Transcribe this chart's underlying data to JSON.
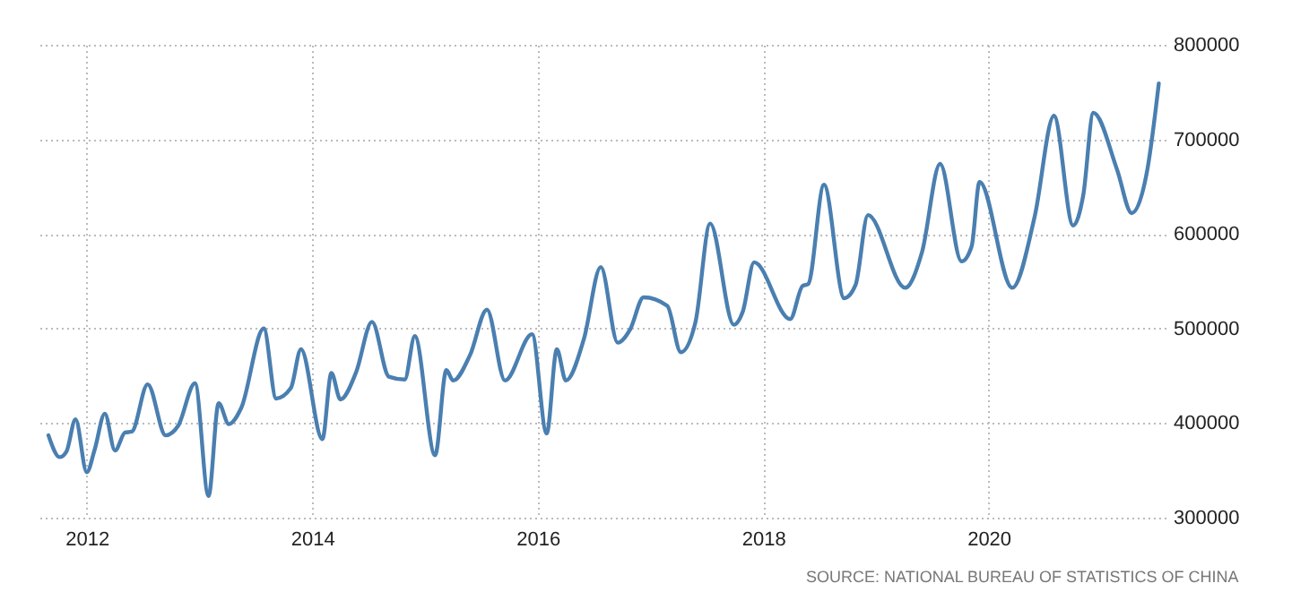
{
  "chart_data": {
    "type": "line",
    "annotations": [
      "SOURCE: NATIONAL BUREAU OF STATISTICS OF CHINA"
    ],
    "x": [
      2011.66,
      2011.76,
      2011.82,
      2011.9,
      2012.0,
      2012.07,
      2012.16,
      2012.25,
      2012.34,
      2012.4,
      2012.54,
      2012.7,
      2012.81,
      2012.96,
      2013.08,
      2013.17,
      2013.26,
      2013.37,
      2013.57,
      2013.68,
      2013.81,
      2013.9,
      2014.09,
      2014.17,
      2014.25,
      2014.39,
      2014.53,
      2014.68,
      2014.82,
      2014.91,
      2015.09,
      2015.19,
      2015.25,
      2015.4,
      2015.55,
      2015.71,
      2015.95,
      2016.08,
      2016.17,
      2016.25,
      2016.41,
      2016.56,
      2016.71,
      2016.82,
      2016.94,
      2017.15,
      2017.27,
      2017.4,
      2017.53,
      2017.74,
      2017.82,
      2017.92,
      2018.24,
      2018.35,
      2018.4,
      2018.54,
      2018.72,
      2018.82,
      2018.93,
      2019.26,
      2019.41,
      2019.57,
      2019.76,
      2019.85,
      2019.92,
      2020.21,
      2020.41,
      2020.58,
      2020.75,
      2020.84,
      2020.93,
      2021.14,
      2021.27,
      2021.41,
      2021.51
    ],
    "series": [
      {
        "color": "#4a7fb0",
        "values": [
          387000,
          364000,
          370000,
          404000,
          348000,
          372000,
          410000,
          371000,
          390000,
          391000,
          441000,
          387000,
          397000,
          442000,
          323000,
          421000,
          399000,
          416000,
          500000,
          426000,
          437000,
          478000,
          383000,
          453000,
          425000,
          454000,
          507000,
          449000,
          446000,
          492000,
          366000,
          456000,
          445000,
          472000,
          520000,
          445000,
          494000,
          389000,
          478000,
          445000,
          489000,
          565000,
          485000,
          499000,
          533000,
          524000,
          475000,
          507000,
          611000,
          504000,
          518000,
          570000,
          510000,
          545000,
          547000,
          652000,
          532000,
          546000,
          620000,
          543000,
          581000,
          674000,
          571000,
          587000,
          655000,
          543000,
          619000,
          725000,
          609000,
          641000,
          728000,
          668000,
          622000,
          669000,
          759000
        ]
      }
    ],
    "xlim": [
      2011.58,
      2021.57
    ],
    "xticks": [
      2012,
      2014,
      2016,
      2018,
      2020
    ],
    "ylim": [
      300000,
      800000
    ],
    "yticks": [
      300000,
      400000,
      500000,
      600000,
      700000,
      800000
    ],
    "grid": true,
    "line_style": "solid"
  }
}
